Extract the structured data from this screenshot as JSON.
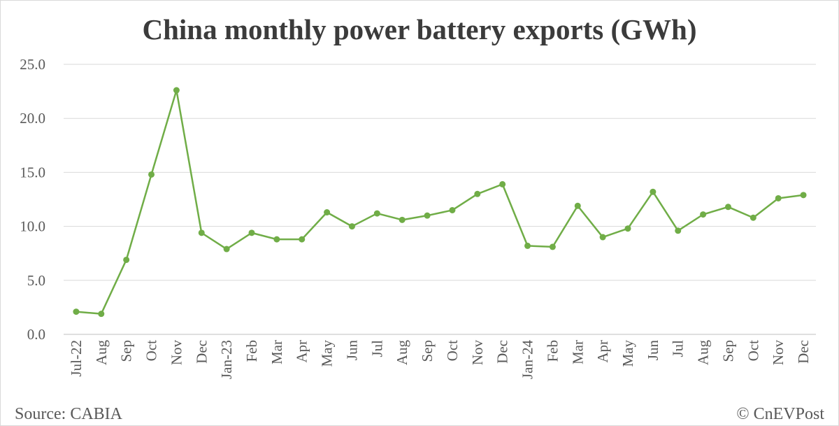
{
  "chart_data": {
    "type": "line",
    "title": "China monthly power battery exports (GWh)",
    "xlabel": "",
    "ylabel": "",
    "ylim": [
      0,
      25
    ],
    "yticks": [
      "0.0",
      "5.0",
      "10.0",
      "15.0",
      "20.0",
      "25.0"
    ],
    "grid": true,
    "color": "#70ad47",
    "categories": [
      "Jul-22",
      "Aug",
      "Sep",
      "Oct",
      "Nov",
      "Dec",
      "Jan-23",
      "Feb",
      "Mar",
      "Apr",
      "May",
      "Jun",
      "Jul",
      "Aug",
      "Sep",
      "Oct",
      "Nov",
      "Dec",
      "Jan-24",
      "Feb",
      "Mar",
      "Apr",
      "May",
      "Jun",
      "Jul",
      "Aug",
      "Sep",
      "Oct",
      "Nov",
      "Dec"
    ],
    "values": [
      2.1,
      1.9,
      6.9,
      14.8,
      22.6,
      9.4,
      7.9,
      9.4,
      8.8,
      8.8,
      11.3,
      10.0,
      11.2,
      10.6,
      11.0,
      11.5,
      13.0,
      13.9,
      8.2,
      8.1,
      11.9,
      9.0,
      9.8,
      13.2,
      9.6,
      11.1,
      11.8,
      10.8,
      12.6,
      12.9
    ]
  },
  "footer": {
    "source": "Source: CABIA",
    "credit": "© CnEVPost"
  }
}
